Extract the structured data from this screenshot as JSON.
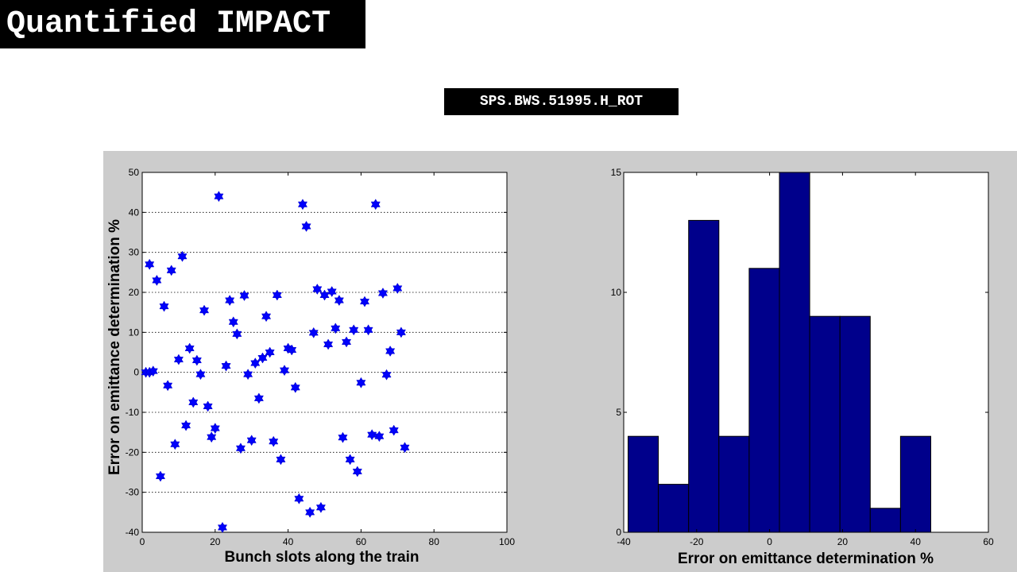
{
  "page": {
    "title": "Quantified IMPACT",
    "device": "SPS.BWS.51995.H_ROT"
  },
  "chart_data": [
    {
      "type": "scatter",
      "xlabel": "Bunch slots along the train",
      "ylabel": "Error on emittance determination %",
      "xlim": [
        0,
        100
      ],
      "ylim": [
        -40,
        50
      ],
      "xticks": [
        0,
        20,
        40,
        60,
        80,
        100
      ],
      "yticks": [
        -40,
        -30,
        -20,
        -10,
        0,
        10,
        20,
        30,
        40,
        50
      ],
      "grid": "horizontal dotted",
      "marker": "hexagram",
      "color": "#0000ff",
      "points": [
        [
          1,
          0
        ],
        [
          2,
          27
        ],
        [
          2,
          0
        ],
        [
          3,
          0.3
        ],
        [
          4,
          23
        ],
        [
          5,
          -26
        ],
        [
          6,
          16.5
        ],
        [
          7,
          -3.3
        ],
        [
          8,
          25.5
        ],
        [
          9,
          -18
        ],
        [
          10,
          3.2
        ],
        [
          11,
          29
        ],
        [
          12,
          -13.3
        ],
        [
          13,
          6
        ],
        [
          14,
          -7.5
        ],
        [
          15,
          3
        ],
        [
          16,
          -0.5
        ],
        [
          17,
          15.5
        ],
        [
          18,
          -8.5
        ],
        [
          19,
          -16.2
        ],
        [
          20,
          -14
        ],
        [
          21,
          44
        ],
        [
          22,
          -38.8
        ],
        [
          23,
          1.6
        ],
        [
          24,
          18
        ],
        [
          25,
          12.6
        ],
        [
          26,
          9.6
        ],
        [
          27,
          -19
        ],
        [
          28,
          19.2
        ],
        [
          29,
          -0.5
        ],
        [
          30,
          -17
        ],
        [
          31,
          2.3
        ],
        [
          32,
          -6.5
        ],
        [
          33,
          3.6
        ],
        [
          34,
          14
        ],
        [
          35,
          5
        ],
        [
          36,
          -17.3
        ],
        [
          37,
          19.3
        ],
        [
          38,
          -21.8
        ],
        [
          39,
          0.5
        ],
        [
          40,
          6
        ],
        [
          41,
          5.6
        ],
        [
          42,
          -3.8
        ],
        [
          43,
          -31.6
        ],
        [
          44,
          42
        ],
        [
          45,
          36.5
        ],
        [
          46,
          -35
        ],
        [
          47,
          9.9
        ],
        [
          48,
          20.8
        ],
        [
          49,
          -33.8
        ],
        [
          50,
          19.3
        ],
        [
          51,
          7
        ],
        [
          52,
          20.2
        ],
        [
          53,
          11
        ],
        [
          54,
          18
        ],
        [
          55,
          -16.3
        ],
        [
          56,
          7.6
        ],
        [
          57,
          -21.8
        ],
        [
          58,
          10.6
        ],
        [
          59,
          -24.8
        ],
        [
          60,
          -2.6
        ],
        [
          61,
          17.7
        ],
        [
          62,
          10.6
        ],
        [
          63,
          -15.6
        ],
        [
          64,
          42
        ],
        [
          65,
          -16
        ],
        [
          66,
          19.8
        ],
        [
          67,
          -0.6
        ],
        [
          68,
          5.3
        ],
        [
          69,
          -14.5
        ],
        [
          70,
          21
        ],
        [
          71,
          10
        ],
        [
          72,
          -18.8
        ]
      ]
    },
    {
      "type": "bar",
      "subtype": "histogram",
      "xlabel": "Error on emittance determination %",
      "ylabel": "",
      "xlim": [
        -40,
        60
      ],
      "ylim": [
        0,
        15
      ],
      "xticks": [
        -40,
        -20,
        0,
        20,
        40,
        60
      ],
      "yticks": [
        0,
        5,
        10,
        15
      ],
      "bin_edges": [
        -38.8,
        -30.5,
        -22.2,
        -13.9,
        -5.6,
        2.7,
        11.0,
        19.3,
        27.6,
        35.9,
        44.2
      ],
      "values": [
        4,
        2,
        13,
        4,
        11,
        15,
        9,
        9,
        1,
        4
      ],
      "color": "#00008b"
    }
  ]
}
